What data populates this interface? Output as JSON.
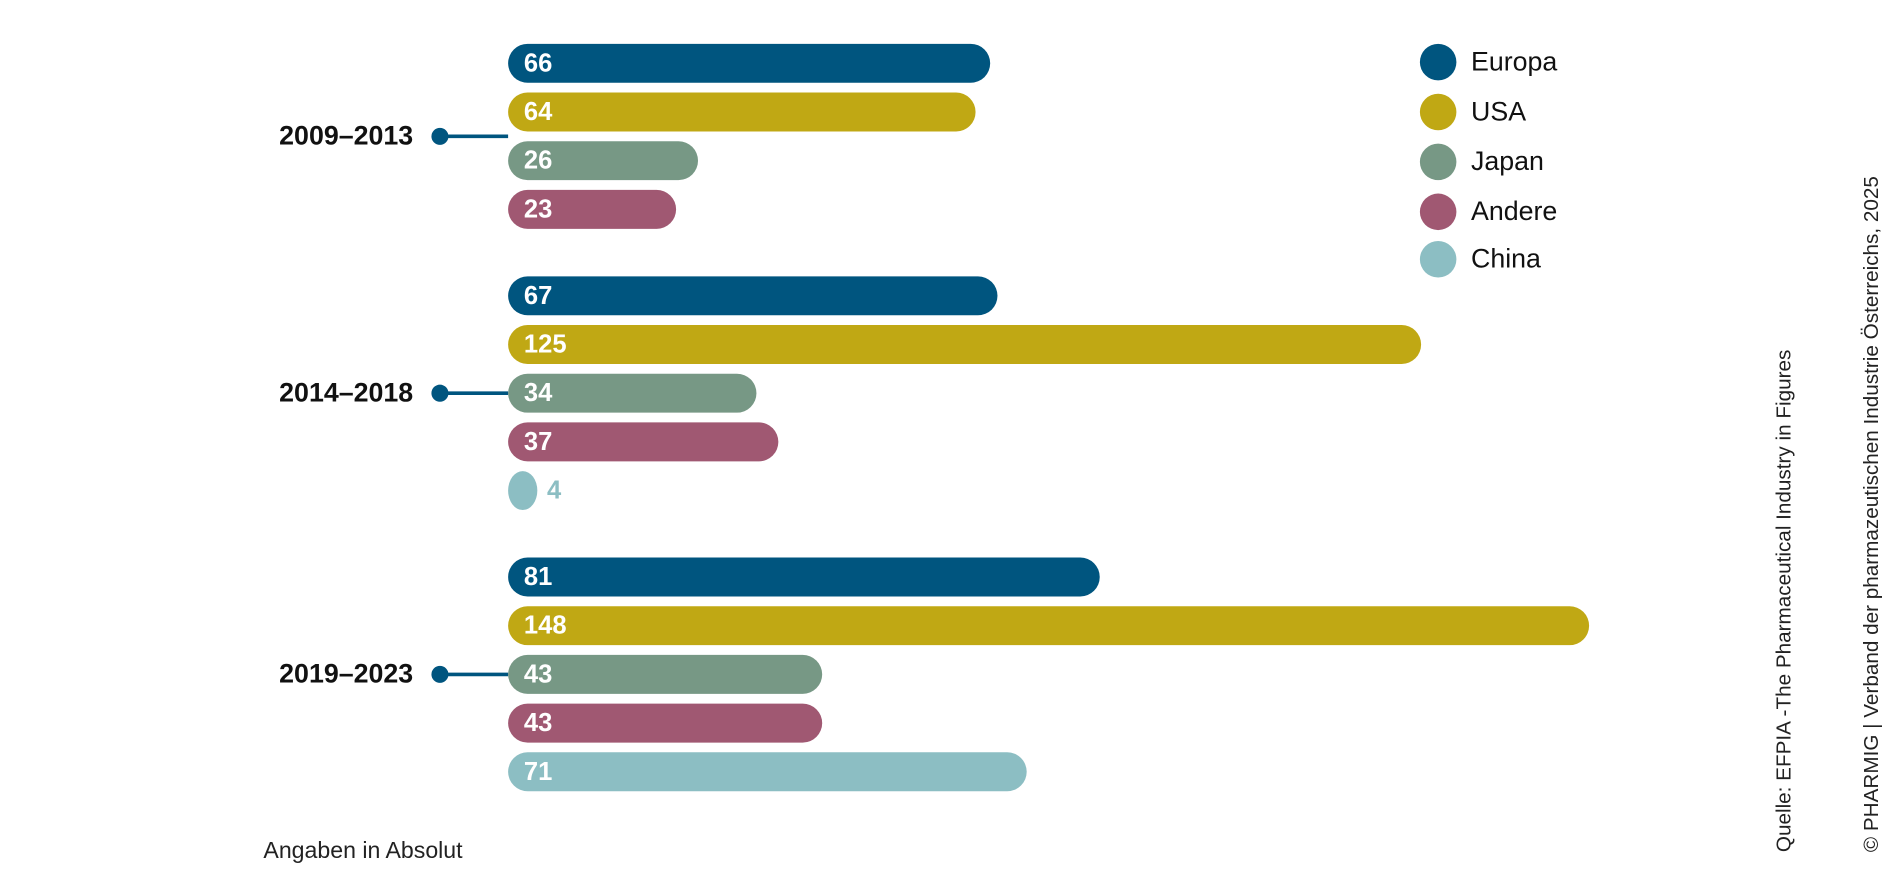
{
  "chart_data": {
    "type": "bar",
    "orientation": "horizontal",
    "categories": [
      "2009–2013",
      "2014–2018",
      "2019–2023"
    ],
    "series": [
      {
        "name": "Europa",
        "color": "#00557f",
        "values": [
          66,
          67,
          81
        ]
      },
      {
        "name": "USA",
        "color": "#c0a814",
        "values": [
          64,
          125,
          148
        ]
      },
      {
        "name": "Japan",
        "color": "#779885",
        "values": [
          26,
          34,
          43
        ]
      },
      {
        "name": "Andere",
        "color": "#a05872",
        "values": [
          23,
          37,
          43
        ]
      },
      {
        "name": "China",
        "color": "#8cbec3",
        "values": [
          null,
          4,
          71
        ]
      }
    ],
    "note": "Angaben in Absolut",
    "source": "Quelle: EFPIA -The Pharmaceutical Industry in Figures",
    "copyright": "© PHARMIG | Verband der pharmazeutischen Industrie Österreichs, 2025",
    "legend": "top-right"
  }
}
